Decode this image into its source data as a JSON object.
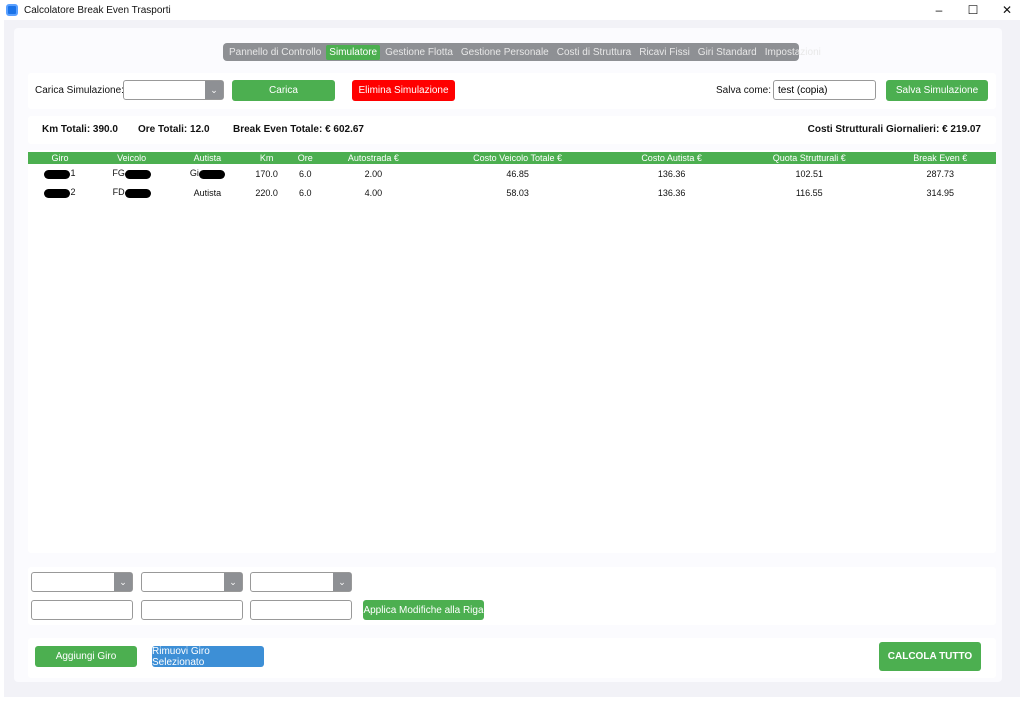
{
  "window": {
    "title": "Calcolatore Break Even Trasporti",
    "minimize": "–",
    "maximize": "☐",
    "close": "✕"
  },
  "tabs": [
    {
      "label": "Pannello di Controllo"
    },
    {
      "label": "Simulatore",
      "active": true
    },
    {
      "label": "Gestione Flotta"
    },
    {
      "label": "Gestione Personale"
    },
    {
      "label": "Costi di Struttura"
    },
    {
      "label": "Ricavi Fissi"
    },
    {
      "label": "Giri Standard"
    },
    {
      "label": "Impostazioni"
    }
  ],
  "toolbar": {
    "load_label": "Carica Simulazione:",
    "load_value": "",
    "load_button": "Carica",
    "delete_button": "Elimina Simulazione",
    "save_as_label": "Salva come:",
    "save_as_value": "test (copia)",
    "save_button": "Salva Simulazione"
  },
  "summary": {
    "km": "Km Totali: 390.0",
    "ore": "Ore Totali: 12.0",
    "break_even": "Break Even Totale: € 602.67",
    "costi": "Costi Strutturali Giornalieri: € 219.07"
  },
  "table": {
    "headers": [
      "Giro",
      "Veicolo",
      "Autista",
      "Km",
      "Ore",
      "Autostrada €",
      "Costo Veicolo Totale €",
      "Costo Autista €",
      "Quota Strutturali €",
      "Break Even €"
    ],
    "rows": [
      [
        "1",
        "FG",
        "Gi",
        "170.0",
        "6.0",
        "2.00",
        "46.85",
        "136.36",
        "102.51",
        "287.73"
      ],
      [
        "2",
        "FD",
        "Autista",
        "220.0",
        "6.0",
        "4.00",
        "58.03",
        "136.36",
        "116.55",
        "314.95"
      ]
    ]
  },
  "editor": {
    "apply_button": "Applica Modifiche alla Riga"
  },
  "footer": {
    "add_button": "Aggiungi Giro",
    "remove_button": "Rimuovi Giro Selezionato",
    "calc_button": "CALCOLA TUTTO"
  },
  "colors": {
    "green": "#4caf50",
    "red": "#ff0000",
    "blue": "#3d8fd6",
    "tabbar": "#8e9094"
  }
}
